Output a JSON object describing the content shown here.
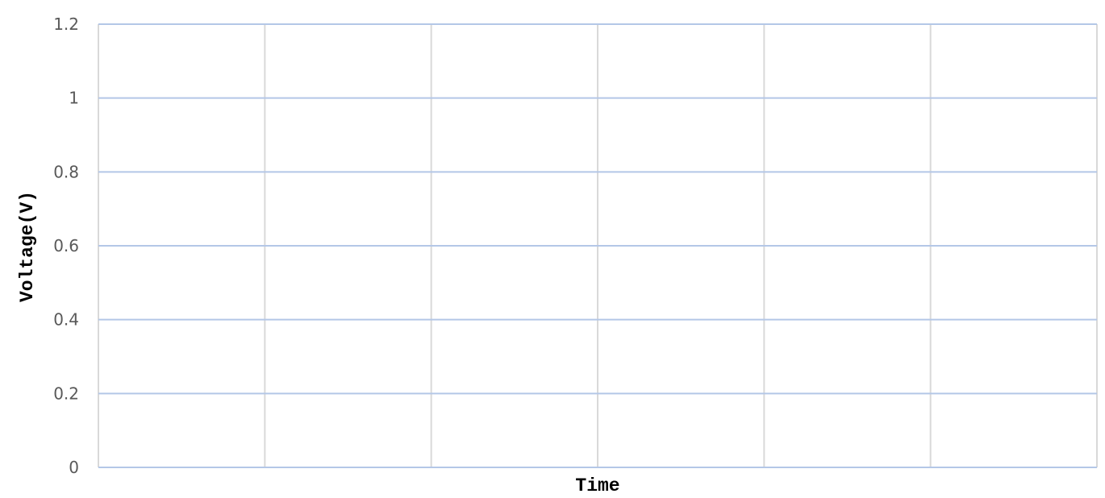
{
  "chart_data": {
    "type": "line",
    "title": "",
    "xlabel": "Time",
    "ylabel": "Voltage(V)",
    "ylim": [
      0,
      1.2
    ],
    "yticks": [
      "0",
      "0.2",
      "0.4",
      "0.6",
      "0.8",
      "1",
      "1.2"
    ],
    "x_divisions": 6,
    "series": [],
    "grid": true,
    "colors": {
      "horizontal_grid": "#b4c7e7",
      "vertical_grid": "#d9d9d9",
      "tick_label": "#595959",
      "axis_title": "#000000"
    }
  }
}
